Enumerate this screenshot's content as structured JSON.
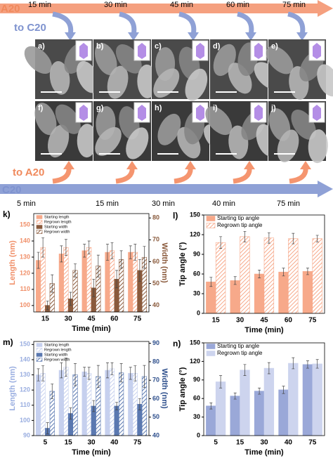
{
  "diagram": {
    "top_start": "A20",
    "top_target": "to C20",
    "top_times": [
      "15 min",
      "30 min",
      "45 min",
      "60 min",
      "75 min"
    ],
    "bottom_target": "to A20",
    "bottom_start": "C20",
    "bottom_times": [
      "5 min",
      "15 min",
      "30 min",
      "40 min",
      "75 min"
    ],
    "image_labels": [
      "a)",
      "b)",
      "c)",
      "d)",
      "e)",
      "f)",
      "g)",
      "h)",
      "i)",
      "j)"
    ]
  },
  "chart_data": [
    {
      "type": "bar",
      "label": "k)",
      "x_label": "Time (min)",
      "y_label": "Length (nm)",
      "y2_label": "Width (nm)",
      "y_color": "#f0906a",
      "y2_color": "#8a5a3c",
      "categories": [
        "15",
        "30",
        "45",
        "60",
        "75"
      ],
      "ylim": [
        96,
        157
      ],
      "yticks": [
        100,
        110,
        120,
        130,
        140,
        150
      ],
      "y2lim": [
        37,
        82
      ],
      "y2ticks": [
        40,
        50,
        60,
        70,
        80
      ],
      "legend": "top-left",
      "series": [
        {
          "name": "Starting length",
          "color": "#f7a98a",
          "hatch": false,
          "values": [
            128,
            132,
            134,
            133,
            133
          ],
          "errors": [
            5,
            5,
            4,
            5,
            4
          ]
        },
        {
          "name": "Regrown length",
          "color": "#f7a98a",
          "hatch": true,
          "values": [
            136,
            136,
            136,
            134,
            133
          ],
          "errors": [
            6,
            5,
            4,
            5,
            5
          ]
        },
        {
          "name": "Starting width",
          "color": "#8a5a3c",
          "hatch": false,
          "axis": "y2",
          "values": [
            40,
            43,
            48,
            52,
            56
          ],
          "errors": [
            2,
            3,
            4,
            4,
            5
          ]
        },
        {
          "name": "Regrown width",
          "color": "#8a5a3c",
          "hatch": true,
          "axis": "y2",
          "values": [
            50,
            56,
            58,
            61,
            62
          ],
          "errors": [
            4,
            3,
            5,
            4,
            5
          ]
        }
      ]
    },
    {
      "type": "bar",
      "label": "l)",
      "x_label": "Time (min)",
      "y_label": "Tip angle (°)",
      "y_color": "#000000",
      "categories": [
        "15",
        "30",
        "45",
        "60",
        "75"
      ],
      "ylim": [
        0,
        150
      ],
      "yticks": [
        0,
        30,
        60,
        90,
        120,
        150
      ],
      "legend": "top-left",
      "series": [
        {
          "name": "Starting tip angle",
          "color": "#f7a98a",
          "hatch": false,
          "values": [
            48,
            50,
            60,
            63,
            64
          ],
          "errors": [
            7,
            6,
            6,
            6,
            5
          ]
        },
        {
          "name": "Regrown tip angle",
          "color": "#f7a98a",
          "hatch": true,
          "values": [
            108,
            117,
            115,
            114,
            114
          ],
          "errors": [
            9,
            8,
            8,
            8,
            5
          ]
        }
      ]
    },
    {
      "type": "bar",
      "label": "m)",
      "x_label": "Time (min)",
      "y_label": "Length (nm)",
      "y2_label": "Width (nm)",
      "y_color": "#9aaee0",
      "y2_color": "#2e4f8c",
      "categories": [
        "5",
        "15",
        "30",
        "40",
        "75"
      ],
      "ylim": [
        90,
        152
      ],
      "yticks": [
        90,
        100,
        110,
        120,
        130,
        140,
        150
      ],
      "y2lim": [
        40,
        91
      ],
      "y2ticks": [
        40,
        50,
        60,
        70,
        80,
        90
      ],
      "legend": "top-left",
      "series": [
        {
          "name": "Starting length",
          "color": "#c6d0ee",
          "hatch": false,
          "values": [
            130,
            133,
            132,
            133,
            131
          ],
          "errors": [
            4,
            5,
            3,
            5,
            4
          ]
        },
        {
          "name": "Regrown length",
          "color": "#c6d0ee",
          "hatch": true,
          "values": [
            131,
            135,
            131,
            134,
            131
          ],
          "errors": [
            5,
            6,
            4,
            4,
            5
          ]
        },
        {
          "name": "Starting width",
          "color": "#5a78b0",
          "hatch": false,
          "axis": "y2",
          "values": [
            44,
            52,
            56,
            56,
            57
          ],
          "errors": [
            3,
            3,
            3,
            2,
            3
          ]
        },
        {
          "name": "Regrown width",
          "color": "#5a78b0",
          "hatch": true,
          "axis": "y2",
          "values": [
            64,
            73,
            72,
            74,
            72
          ],
          "errors": [
            4,
            6,
            6,
            5,
            6
          ]
        }
      ]
    },
    {
      "type": "bar",
      "label": "n)",
      "x_label": "Time (min)",
      "y_label": "Tip angle (°)",
      "y_color": "#000000",
      "categories": [
        "5",
        "15",
        "30",
        "40",
        "75"
      ],
      "ylim": [
        0,
        150
      ],
      "yticks": [
        0,
        30,
        60,
        90,
        120,
        150
      ],
      "legend": "top-left",
      "series": [
        {
          "name": "Starting tip angle",
          "color": "#9aa8d8",
          "hatch": false,
          "values": [
            48,
            64,
            72,
            74,
            115
          ],
          "errors": [
            5,
            5,
            5,
            6,
            6
          ]
        },
        {
          "name": "Regrown tip angle",
          "color": "#cdd4ee",
          "hatch": false,
          "values": [
            87,
            106,
            109,
            117,
            116
          ],
          "errors": [
            10,
            9,
            9,
            9,
            7
          ]
        }
      ]
    }
  ]
}
